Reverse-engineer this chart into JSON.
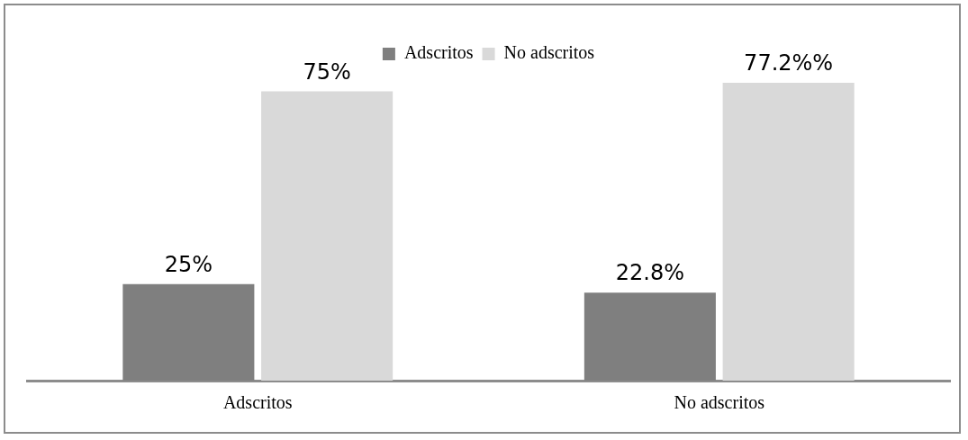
{
  "chart_data": {
    "type": "bar",
    "categories": [
      "Adscritos",
      "No adscritos"
    ],
    "series": [
      {
        "name": "Adscritos",
        "color": "#7f7f7f",
        "values": [
          25,
          22.8
        ],
        "value_labels": [
          "25%",
          "22.8%"
        ]
      },
      {
        "name": "No adscritos",
        "color": "#d9d9d9",
        "values": [
          75,
          77.2
        ],
        "value_labels": [
          "75%",
          "77.2%%"
        ]
      }
    ],
    "legend": "top",
    "grid": false,
    "tick_labels": "x"
  }
}
